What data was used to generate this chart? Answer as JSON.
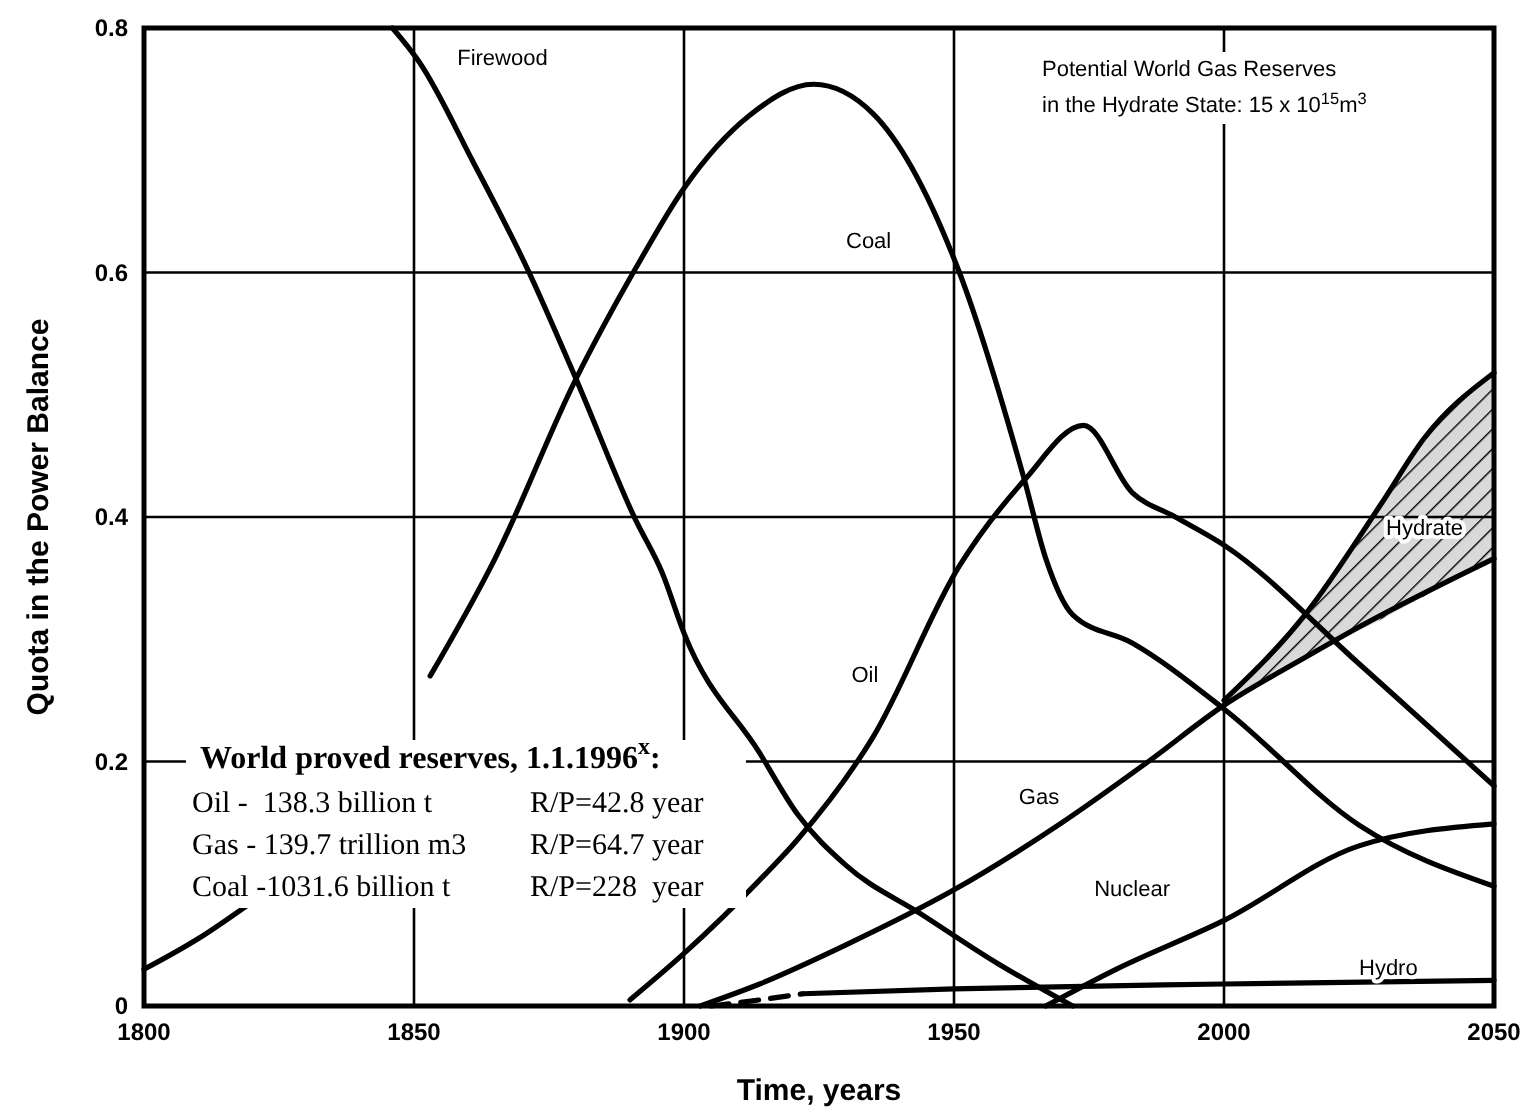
{
  "chart_data": {
    "type": "line",
    "xlabel": "Time, years",
    "ylabel": "Quota in the Power Balance",
    "xlim": [
      1800,
      2050
    ],
    "xticks": [
      1800,
      1850,
      1900,
      1950,
      2000,
      2050
    ],
    "ylim": [
      0,
      0.8
    ],
    "yticks": [
      0,
      0.2,
      0.4,
      0.6,
      0.8
    ],
    "grid": true,
    "marker": "none",
    "series": [
      {
        "name": "Firewood",
        "color": "#000000",
        "x": [
          1846,
          1851,
          1861,
          1871,
          1880,
          1891,
          1896,
          1900,
          1914,
          1921,
          1930,
          1944,
          1958,
          1972
        ],
        "values": [
          0.8,
          0.772,
          0.69,
          0.603,
          0.513,
          0.398,
          0.354,
          0.305,
          0.207,
          0.157,
          0.115,
          0.075,
          0.035,
          0.0
        ]
      },
      {
        "name": "Coal",
        "color": "#000000",
        "x": [
          1800,
          1810,
          1819,
          1830,
          1842,
          1853,
          1865,
          1880,
          1891,
          1900,
          1912,
          1924,
          1935,
          1951,
          1963,
          1967,
          1972,
          1983,
          2000,
          2025,
          2050
        ],
        "values": [
          0.03,
          0.055,
          0.082,
          null,
          null,
          0.27,
          0.366,
          0.513,
          0.603,
          0.669,
          0.728,
          0.754,
          0.73,
          0.6,
          0.431,
          0.366,
          0.32,
          0.297,
          0.243,
          0.148,
          0.098
        ]
      },
      {
        "name": "Oil",
        "color": "#000000",
        "x": [
          1890,
          1900,
          1914,
          1921,
          1935,
          1951,
          1963,
          1974,
          1983,
          1991,
          2000,
          2025,
          2050
        ],
        "values": [
          0.005,
          0.043,
          0.103,
          0.136,
          0.22,
          0.36,
          0.43,
          0.475,
          0.42,
          0.4,
          0.377,
          0.28,
          0.18
        ]
      },
      {
        "name": "Gas",
        "color": "#000000",
        "x": [
          1903,
          1914,
          1930,
          1950,
          1970,
          1986,
          2000,
          2015,
          2025,
          2050
        ],
        "values": [
          0.0,
          0.018,
          0.05,
          0.095,
          0.15,
          0.2,
          0.246,
          0.285,
          0.31,
          0.366
        ]
      },
      {
        "name": "Hydrate",
        "color": "#000000",
        "x": [
          2000,
          2015,
          2029,
          2037,
          2050
        ],
        "values": [
          0.25,
          0.32,
          0.41,
          0.464,
          0.518
        ],
        "lower": [
          0.246,
          0.285,
          0.316,
          0.335,
          0.366
        ],
        "upper": [
          0.25,
          0.32,
          0.41,
          0.464,
          0.518
        ]
      },
      {
        "name": "Nuclear",
        "color": "#000000",
        "x": [
          1967,
          1980,
          2000,
          2025,
          2050
        ],
        "values": [
          0.0,
          0.03,
          0.07,
          0.131,
          0.149
        ]
      },
      {
        "color": "#000000",
        "line_style": "dashed",
        "x": [
          1905,
          1914,
          1922
        ],
        "values": [
          0.0,
          0.005,
          0.01
        ]
      },
      {
        "name": "Hydro",
        "color": "#000000",
        "x": [
          1922,
          1950,
          2000,
          2050
        ],
        "values": [
          0.01,
          0.014,
          0.018,
          0.021
        ]
      }
    ],
    "annotations": [
      "Potential World Gas Reserves",
      "in the Hydrate State: 15 x 10$^{15}$m$^{3}$",
      "World proved reserves, 1.1.1996$^{x}$:",
      "Oil -  138.3 billion t",
      "R/P=42.8 year",
      "Gas - 139.7 trillion m3",
      "R/P=64.7 year",
      "Coal -1031.6 billion t",
      "R/P=228  year"
    ]
  }
}
